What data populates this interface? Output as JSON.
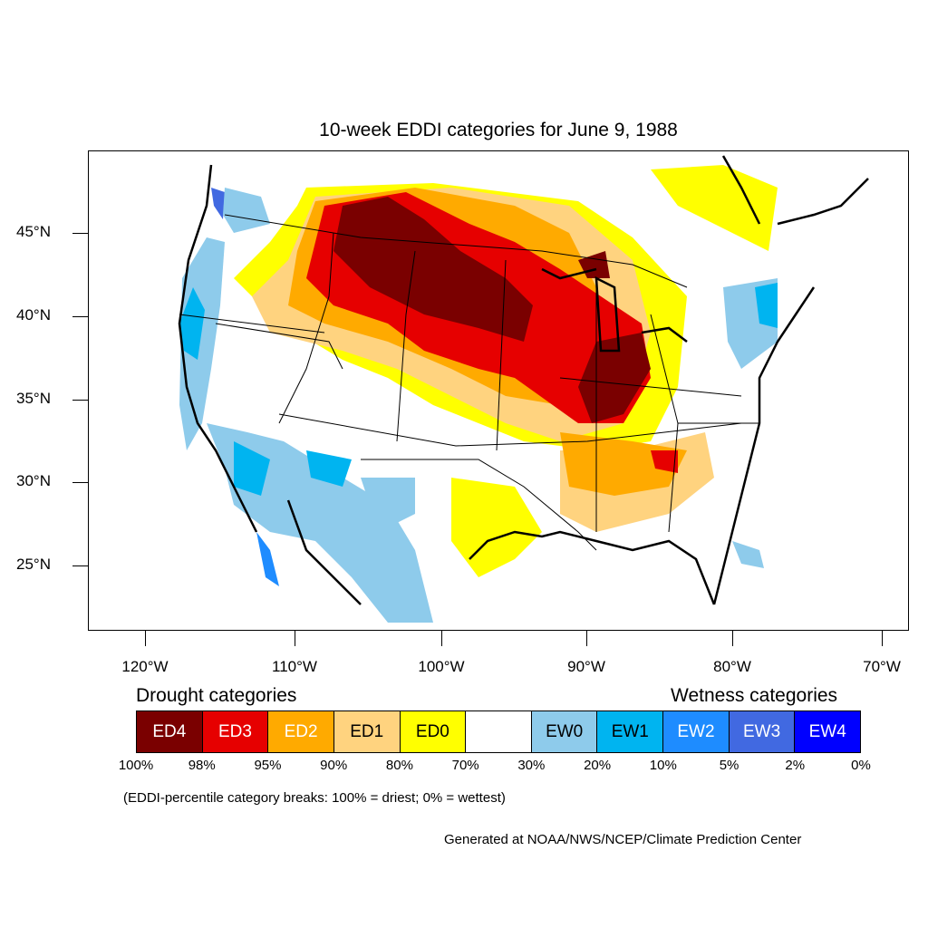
{
  "title": "10-week EDDI categories for June 9, 1988",
  "map": {
    "lat_labels": [
      "45°N",
      "40°N",
      "35°N",
      "30°N",
      "25°N"
    ],
    "lon_labels": [
      "120°W",
      "110°W",
      "100°W",
      "90°W",
      "80°W",
      "70°W"
    ]
  },
  "legend": {
    "drought_heading": "Drought categories",
    "wetness_heading": "Wetness categories",
    "categories": [
      {
        "label": "ED4",
        "color": "#7a0000",
        "text_color": "#ffffff"
      },
      {
        "label": "ED3",
        "color": "#e60000",
        "text_color": "#ffffff"
      },
      {
        "label": "ED2",
        "color": "#ffaa00",
        "text_color": "#ffffff"
      },
      {
        "label": "ED1",
        "color": "#ffd37f",
        "text_color": "#000000"
      },
      {
        "label": "ED0",
        "color": "#ffff00",
        "text_color": "#000000"
      },
      {
        "label": "",
        "color": "#ffffff",
        "text_color": "#000000"
      },
      {
        "label": "EW0",
        "color": "#8ecbeb",
        "text_color": "#000000"
      },
      {
        "label": "EW1",
        "color": "#00b4f0",
        "text_color": "#000000"
      },
      {
        "label": "EW2",
        "color": "#1e8cff",
        "text_color": "#ffffff"
      },
      {
        "label": "EW3",
        "color": "#4169e1",
        "text_color": "#ffffff"
      },
      {
        "label": "EW4",
        "color": "#0000ff",
        "text_color": "#ffffff"
      }
    ],
    "percentiles": [
      "100%",
      "98%",
      "95%",
      "90%",
      "80%",
      "70%",
      "30%",
      "20%",
      "10%",
      "5%",
      "2%",
      "0%"
    ]
  },
  "note": "(EDDI-percentile category breaks: 100% = driest; 0% = wettest)",
  "credit": "Generated at NOAA/NWS/NCEP/Climate Prediction Center"
}
